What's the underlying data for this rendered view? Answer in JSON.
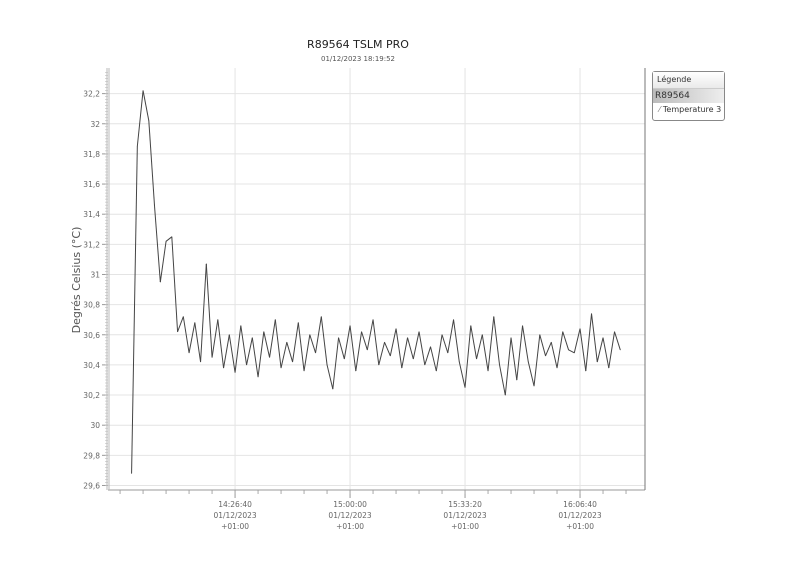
{
  "chart_data": {
    "type": "line",
    "title": "R89564 TSLM PRO",
    "subtitle": "01/12/2023 18:19:52",
    "ylabel": "Degrés Celsius (°C)",
    "xlabel": "",
    "ylim": [
      29.57,
      32.37
    ],
    "xlim": [
      "13:49:50",
      "16:25:30"
    ],
    "grid": true,
    "y_ticks": [
      "32,2",
      "32",
      "31,8",
      "31,6",
      "31,4",
      "31,2",
      "31",
      "30,8",
      "30,6",
      "30,4",
      "30,2",
      "30",
      "29,8",
      "29,6"
    ],
    "y_tick_values": [
      32.2,
      32,
      31.8,
      31.6,
      31.4,
      31.2,
      31,
      30.8,
      30.6,
      30.4,
      30.2,
      30,
      29.8,
      29.6
    ],
    "x_ticks": [
      {
        "time": "14:26:40",
        "lines": [
          "14:26:40",
          "01/12/2023",
          "+01:00"
        ]
      },
      {
        "time": "15:00:00",
        "lines": [
          "15:00:00",
          "01/12/2023",
          "+01:00"
        ]
      },
      {
        "time": "15:33:20",
        "lines": [
          "15:33:20",
          "01/12/2023",
          "+01:00"
        ]
      },
      {
        "time": "16:06:40",
        "lines": [
          "16:06:40",
          "01/12/2023",
          "+01:00"
        ]
      }
    ],
    "legend": {
      "title": "Légende",
      "group": "R89564",
      "placement": "right"
    },
    "series": [
      {
        "name": "Temperature 3",
        "color": "#444444",
        "x": [
          "13:56:40",
          "13:58:20",
          "14:00:00",
          "14:01:40",
          "14:03:20",
          "14:05:00",
          "14:06:40",
          "14:08:20",
          "14:10:00",
          "14:11:40",
          "14:13:20",
          "14:15:00",
          "14:16:40",
          "14:18:20",
          "14:20:00",
          "14:21:40",
          "14:23:20",
          "14:25:00",
          "14:26:40",
          "14:28:20",
          "14:30:00",
          "14:31:40",
          "14:33:20",
          "14:35:00",
          "14:36:40",
          "14:38:20",
          "14:40:00",
          "14:41:40",
          "14:43:20",
          "14:45:00",
          "14:46:40",
          "14:48:20",
          "14:50:00",
          "14:51:40",
          "14:53:20",
          "14:55:00",
          "14:56:40",
          "14:58:20",
          "15:00:00",
          "15:01:40",
          "15:03:20",
          "15:05:00",
          "15:06:40",
          "15:08:20",
          "15:10:00",
          "15:11:40",
          "15:13:20",
          "15:15:00",
          "15:16:40",
          "15:18:20",
          "15:20:00",
          "15:21:40",
          "15:23:20",
          "15:25:00",
          "15:26:40",
          "15:28:20",
          "15:30:00",
          "15:31:40",
          "15:33:20",
          "15:35:00",
          "15:36:40",
          "15:38:20",
          "15:40:00",
          "15:41:40",
          "15:43:20",
          "15:45:00",
          "15:46:40",
          "15:48:20",
          "15:50:00",
          "15:51:40",
          "15:53:20",
          "15:55:00",
          "15:56:40",
          "15:58:20",
          "16:00:00",
          "16:01:40",
          "16:03:20",
          "16:05:00",
          "16:06:40",
          "16:08:20",
          "16:10:00",
          "16:11:40",
          "16:13:20",
          "16:15:00",
          "16:16:40",
          "16:18:20"
        ],
        "y": [
          29.68,
          31.85,
          32.22,
          32.02,
          31.45,
          30.95,
          31.22,
          31.25,
          30.62,
          30.72,
          30.48,
          30.68,
          30.42,
          31.07,
          30.45,
          30.7,
          30.38,
          30.6,
          30.35,
          30.66,
          30.4,
          30.58,
          30.32,
          30.62,
          30.45,
          30.7,
          30.38,
          30.55,
          30.42,
          30.68,
          30.36,
          30.6,
          30.48,
          30.72,
          30.4,
          30.24,
          30.58,
          30.44,
          30.66,
          30.36,
          30.62,
          30.5,
          30.7,
          30.4,
          30.55,
          30.46,
          30.64,
          30.38,
          30.58,
          30.44,
          30.62,
          30.4,
          30.52,
          30.36,
          30.6,
          30.48,
          30.7,
          30.42,
          30.25,
          30.66,
          30.44,
          30.6,
          30.36,
          30.72,
          30.4,
          30.2,
          30.58,
          30.3,
          30.66,
          30.42,
          30.26,
          30.6,
          30.46,
          30.55,
          30.38,
          30.62,
          30.5,
          30.48,
          30.64,
          30.36,
          30.74,
          30.42,
          30.58,
          30.38,
          30.62,
          30.5
        ]
      }
    ]
  }
}
